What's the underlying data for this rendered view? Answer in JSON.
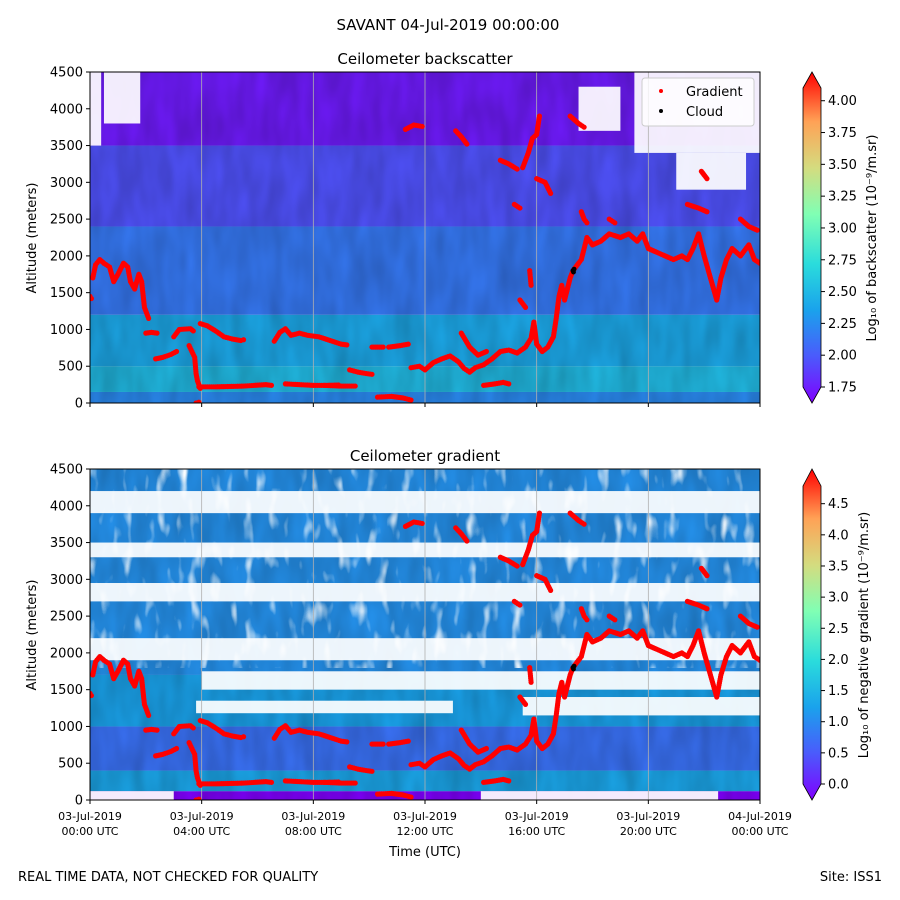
{
  "figure": {
    "title": "SAVANT 04-Jul-2019 00:00:00",
    "footer_left": "REAL TIME DATA, NOT CHECKED FOR QUALITY",
    "footer_right": "Site: ISS1",
    "xlabel": "Time (UTC)"
  },
  "chart_data": [
    {
      "type": "heatmap",
      "title": "Ceilometer backscatter",
      "ylabel": "Altitude (meters)",
      "ylim": [
        0,
        4500
      ],
      "yticks": [
        0,
        500,
        1000,
        1500,
        2000,
        2500,
        3000,
        3500,
        4000,
        4500
      ],
      "x_hours": [
        0,
        24
      ],
      "xticks_hours": [
        0,
        4,
        8,
        12,
        16,
        20,
        24
      ],
      "show_xtick_labels": false,
      "colorbar": {
        "label": "Log₁₀ of backscatter (10⁻⁹/m.sr)",
        "min": 1.75,
        "max": 4.1,
        "ticks": [
          "1.75",
          "2.00",
          "2.25",
          "2.50",
          "2.75",
          "3.00",
          "3.25",
          "3.50",
          "3.75",
          "4.00"
        ],
        "tick_values": [
          1.75,
          2.0,
          2.25,
          2.5,
          2.75,
          3.0,
          3.25,
          3.5,
          3.75,
          4.0
        ]
      },
      "legend": {
        "placement": "top-right",
        "entries": [
          {
            "name": "Gradient",
            "color": "#ff0000"
          },
          {
            "name": "Cloud",
            "color": "#000000"
          }
        ]
      },
      "background_layers": "backscatter",
      "overlays": "shared"
    },
    {
      "type": "heatmap",
      "title": "Ceilometer gradient",
      "ylabel": "Altitude (meters)",
      "ylim": [
        0,
        4500
      ],
      "yticks": [
        0,
        500,
        1000,
        1500,
        2000,
        2500,
        3000,
        3500,
        4000,
        4500
      ],
      "x_hours": [
        0,
        24
      ],
      "xticks_hours": [
        0,
        4,
        8,
        12,
        16,
        20,
        24
      ],
      "show_xtick_labels": true,
      "xtick_labels": [
        [
          "03-Jul-2019",
          "00:00 UTC"
        ],
        [
          "03-Jul-2019",
          "04:00 UTC"
        ],
        [
          "03-Jul-2019",
          "08:00 UTC"
        ],
        [
          "03-Jul-2019",
          "12:00 UTC"
        ],
        [
          "03-Jul-2019",
          "16:00 UTC"
        ],
        [
          "03-Jul-2019",
          "20:00 UTC"
        ],
        [
          "04-Jul-2019",
          "00:00 UTC"
        ]
      ],
      "colorbar": {
        "label": "Log₁₀ of negative gradient (10⁻⁹/m.sr)",
        "min": 0.0,
        "max": 4.8,
        "ticks": [
          "0.0",
          "0.5",
          "1.0",
          "1.5",
          "2.0",
          "2.5",
          "3.0",
          "3.5",
          "4.0",
          "4.5"
        ],
        "tick_values": [
          0.0,
          0.5,
          1.0,
          1.5,
          2.0,
          2.5,
          3.0,
          3.5,
          4.0,
          4.5
        ]
      },
      "background_layers": "gradient",
      "overlays": "shared"
    }
  ],
  "series": {
    "gradient": {
      "name": "Gradient",
      "color": "#ff0000",
      "segments": [
        [
          [
            0.0,
            1450
          ],
          [
            0.05,
            1420
          ]
        ],
        [
          [
            0.1,
            1700
          ],
          [
            0.2,
            1880
          ],
          [
            0.35,
            1950
          ],
          [
            0.5,
            1900
          ],
          [
            0.7,
            1850
          ],
          [
            0.85,
            1650
          ],
          [
            1.0,
            1750
          ],
          [
            1.2,
            1900
          ],
          [
            1.35,
            1850
          ],
          [
            1.45,
            1650
          ],
          [
            1.6,
            1550
          ],
          [
            1.75,
            1750
          ],
          [
            1.85,
            1650
          ],
          [
            1.95,
            1300
          ],
          [
            2.05,
            1200
          ],
          [
            2.1,
            1150
          ]
        ],
        [
          [
            2.0,
            950
          ],
          [
            2.2,
            960
          ],
          [
            2.4,
            950
          ]
        ],
        [
          [
            2.35,
            600
          ],
          [
            2.6,
            620
          ],
          [
            2.9,
            660
          ],
          [
            3.1,
            700
          ]
        ],
        [
          [
            3.0,
            900
          ],
          [
            3.2,
            1000
          ],
          [
            3.6,
            1010
          ],
          [
            3.7,
            980
          ]
        ],
        [
          [
            3.55,
            780
          ],
          [
            3.65,
            700
          ],
          [
            3.75,
            620
          ],
          [
            3.8,
            400
          ],
          [
            3.85,
            300
          ],
          [
            3.9,
            250
          ],
          [
            3.95,
            200
          ]
        ],
        [
          [
            3.8,
            0
          ],
          [
            3.9,
            10
          ]
        ],
        [
          [
            3.95,
            1080
          ],
          [
            4.2,
            1050
          ],
          [
            4.5,
            980
          ],
          [
            4.8,
            900
          ],
          [
            5.1,
            870
          ],
          [
            5.4,
            850
          ],
          [
            5.5,
            860
          ]
        ],
        [
          [
            3.9,
            220
          ],
          [
            4.5,
            220
          ],
          [
            5.5,
            230
          ],
          [
            6.3,
            250
          ],
          [
            6.5,
            240
          ]
        ],
        [
          [
            6.6,
            840
          ],
          [
            6.8,
            960
          ],
          [
            7.0,
            1010
          ],
          [
            7.2,
            920
          ],
          [
            7.5,
            950
          ],
          [
            7.8,
            920
          ],
          [
            8.2,
            900
          ],
          [
            8.6,
            850
          ],
          [
            9.0,
            800
          ],
          [
            9.2,
            790
          ]
        ],
        [
          [
            7.0,
            260
          ],
          [
            7.5,
            250
          ],
          [
            8.0,
            240
          ],
          [
            8.5,
            240
          ],
          [
            8.9,
            245
          ]
        ],
        [
          [
            8.4,
            240
          ],
          [
            9.0,
            230
          ],
          [
            9.5,
            230
          ]
        ],
        [
          [
            9.3,
            450
          ],
          [
            9.6,
            420
          ],
          [
            9.9,
            400
          ],
          [
            10.1,
            390
          ]
        ],
        [
          [
            10.1,
            760
          ],
          [
            10.5,
            760
          ]
        ],
        [
          [
            10.3,
            80
          ],
          [
            10.8,
            90
          ],
          [
            11.2,
            70
          ],
          [
            11.5,
            40
          ]
        ],
        [
          [
            10.7,
            760
          ],
          [
            11.1,
            780
          ],
          [
            11.4,
            800
          ]
        ],
        [
          [
            11.5,
            480
          ],
          [
            11.8,
            500
          ],
          [
            12.0,
            450
          ],
          [
            12.3,
            550
          ],
          [
            12.6,
            600
          ],
          [
            12.9,
            640
          ],
          [
            13.2,
            560
          ],
          [
            13.4,
            470
          ],
          [
            13.6,
            420
          ],
          [
            13.8,
            480
          ],
          [
            14.1,
            520
          ],
          [
            14.4,
            600
          ],
          [
            14.7,
            700
          ],
          [
            15.0,
            720
          ],
          [
            15.3,
            680
          ],
          [
            15.6,
            760
          ],
          [
            15.8,
            880
          ],
          [
            15.9,
            1100
          ],
          [
            16.0,
            800
          ],
          [
            16.2,
            700
          ],
          [
            16.4,
            760
          ],
          [
            16.6,
            900
          ],
          [
            16.7,
            1150
          ],
          [
            16.8,
            1450
          ],
          [
            16.9,
            1600
          ],
          [
            17.0,
            1400
          ],
          [
            17.1,
            1550
          ],
          [
            17.2,
            1700
          ],
          [
            17.3,
            1800
          ],
          [
            17.5,
            1900
          ],
          [
            17.6,
            1950
          ],
          [
            17.8,
            2250
          ],
          [
            18.0,
            2150
          ],
          [
            18.3,
            2200
          ],
          [
            18.6,
            2300
          ],
          [
            19.0,
            2250
          ],
          [
            19.3,
            2300
          ],
          [
            19.6,
            2200
          ],
          [
            19.8,
            2300
          ],
          [
            20.0,
            2100
          ],
          [
            20.3,
            2050
          ],
          [
            20.6,
            2000
          ],
          [
            20.9,
            1950
          ],
          [
            21.2,
            2000
          ],
          [
            21.4,
            1950
          ],
          [
            21.6,
            2100
          ],
          [
            21.8,
            2300
          ],
          [
            22.0,
            2000
          ],
          [
            22.15,
            1800
          ],
          [
            22.3,
            1600
          ],
          [
            22.45,
            1400
          ],
          [
            22.6,
            1700
          ],
          [
            22.8,
            1950
          ],
          [
            23.0,
            2100
          ],
          [
            23.3,
            2000
          ],
          [
            23.6,
            2150
          ],
          [
            23.8,
            1950
          ],
          [
            24.0,
            1900
          ]
        ],
        [
          [
            13.3,
            950
          ],
          [
            13.6,
            760
          ],
          [
            13.9,
            650
          ],
          [
            14.2,
            700
          ]
        ],
        [
          [
            14.1,
            240
          ],
          [
            14.5,
            260
          ],
          [
            14.8,
            280
          ],
          [
            15.0,
            260
          ]
        ],
        [
          [
            15.75,
            1800
          ],
          [
            15.8,
            1600
          ]
        ],
        [
          [
            13.1,
            3700
          ],
          [
            13.3,
            3620
          ],
          [
            13.5,
            3520
          ]
        ],
        [
          [
            11.3,
            3720
          ],
          [
            11.6,
            3780
          ],
          [
            11.9,
            3760
          ]
        ],
        [
          [
            14.7,
            3300
          ],
          [
            15.0,
            3250
          ],
          [
            15.3,
            3180
          ]
        ],
        [
          [
            15.5,
            3200
          ],
          [
            15.7,
            3400
          ],
          [
            15.85,
            3600
          ],
          [
            16.0,
            3650
          ],
          [
            16.1,
            3900
          ]
        ],
        [
          [
            16.0,
            3050
          ],
          [
            16.3,
            3000
          ],
          [
            16.5,
            2850
          ]
        ],
        [
          [
            17.2,
            3900
          ],
          [
            17.5,
            3800
          ],
          [
            17.7,
            3750
          ]
        ],
        [
          [
            17.6,
            2600
          ],
          [
            17.7,
            2500
          ],
          [
            17.8,
            2450
          ]
        ],
        [
          [
            18.6,
            2500
          ],
          [
            18.8,
            2450
          ]
        ],
        [
          [
            21.9,
            3150
          ],
          [
            22.1,
            3050
          ]
        ],
        [
          [
            21.4,
            2700
          ],
          [
            21.8,
            2650
          ],
          [
            22.1,
            2600
          ]
        ],
        [
          [
            23.3,
            2500
          ],
          [
            23.6,
            2400
          ],
          [
            23.9,
            2350
          ]
        ],
        [
          [
            15.2,
            2700
          ],
          [
            15.4,
            2650
          ]
        ],
        [
          [
            15.4,
            1400
          ],
          [
            15.6,
            1300
          ]
        ]
      ]
    },
    "cloud": {
      "name": "Cloud",
      "color": "#000000",
      "points": [
        [
          17.3,
          1800
        ],
        [
          17.32,
          1780
        ],
        [
          17.34,
          1820
        ]
      ]
    }
  },
  "background": {
    "backscatter": {
      "bands": [
        {
          "from": 0,
          "to": 150,
          "value": 2.3
        },
        {
          "from": 150,
          "to": 500,
          "value": 2.55
        },
        {
          "from": 500,
          "to": 1200,
          "value": 2.45
        },
        {
          "from": 1200,
          "to": 2400,
          "value": 2.22
        },
        {
          "from": 2400,
          "to": 3500,
          "value": 2.05
        },
        {
          "from": 3500,
          "to": 4500,
          "value": 1.85
        }
      ],
      "blank_regions": [
        {
          "x0": 0.5,
          "x1": 1.8,
          "y0": 3800,
          "y1": 4500
        },
        {
          "x0": 19.5,
          "x1": 24,
          "y0": 3400,
          "y1": 4500
        },
        {
          "x0": 21.0,
          "x1": 23.5,
          "y0": 2900,
          "y1": 3400
        },
        {
          "x0": 17.5,
          "x1": 19.0,
          "y0": 3700,
          "y1": 4300
        },
        {
          "x0": 0.0,
          "x1": 0.4,
          "y0": 3500,
          "y1": 4500
        }
      ]
    },
    "gradient": {
      "bands": [
        {
          "from": 0,
          "to": 120,
          "value": 0.0
        },
        {
          "from": 120,
          "to": 400,
          "value": 1.4
        },
        {
          "from": 400,
          "to": 1000,
          "value": 0.9
        },
        {
          "from": 1000,
          "to": 1700,
          "value": 1.35
        },
        {
          "from": 1700,
          "to": 4500,
          "value": 1.2
        }
      ],
      "blank_regions": [
        {
          "x0": 0.0,
          "x1": 24.0,
          "y0": 1900,
          "y1": 2200
        },
        {
          "x0": 0.0,
          "x1": 24.0,
          "y0": 2700,
          "y1": 2950
        },
        {
          "x0": 0.0,
          "x1": 24.0,
          "y0": 3300,
          "y1": 3500
        },
        {
          "x0": 0.0,
          "x1": 24.0,
          "y0": 3900,
          "y1": 4200
        },
        {
          "x0": 4.0,
          "x1": 24.0,
          "y0": 1500,
          "y1": 1750
        },
        {
          "x0": 3.8,
          "x1": 13.0,
          "y0": 1180,
          "y1": 1350
        },
        {
          "x0": 15.5,
          "x1": 24.0,
          "y0": 1150,
          "y1": 1400
        },
        {
          "x0": 0.0,
          "x1": 3.0,
          "y0": 0,
          "y1": 120
        },
        {
          "x0": 14.0,
          "x1": 22.5,
          "y0": 0,
          "y1": 120
        }
      ]
    }
  }
}
